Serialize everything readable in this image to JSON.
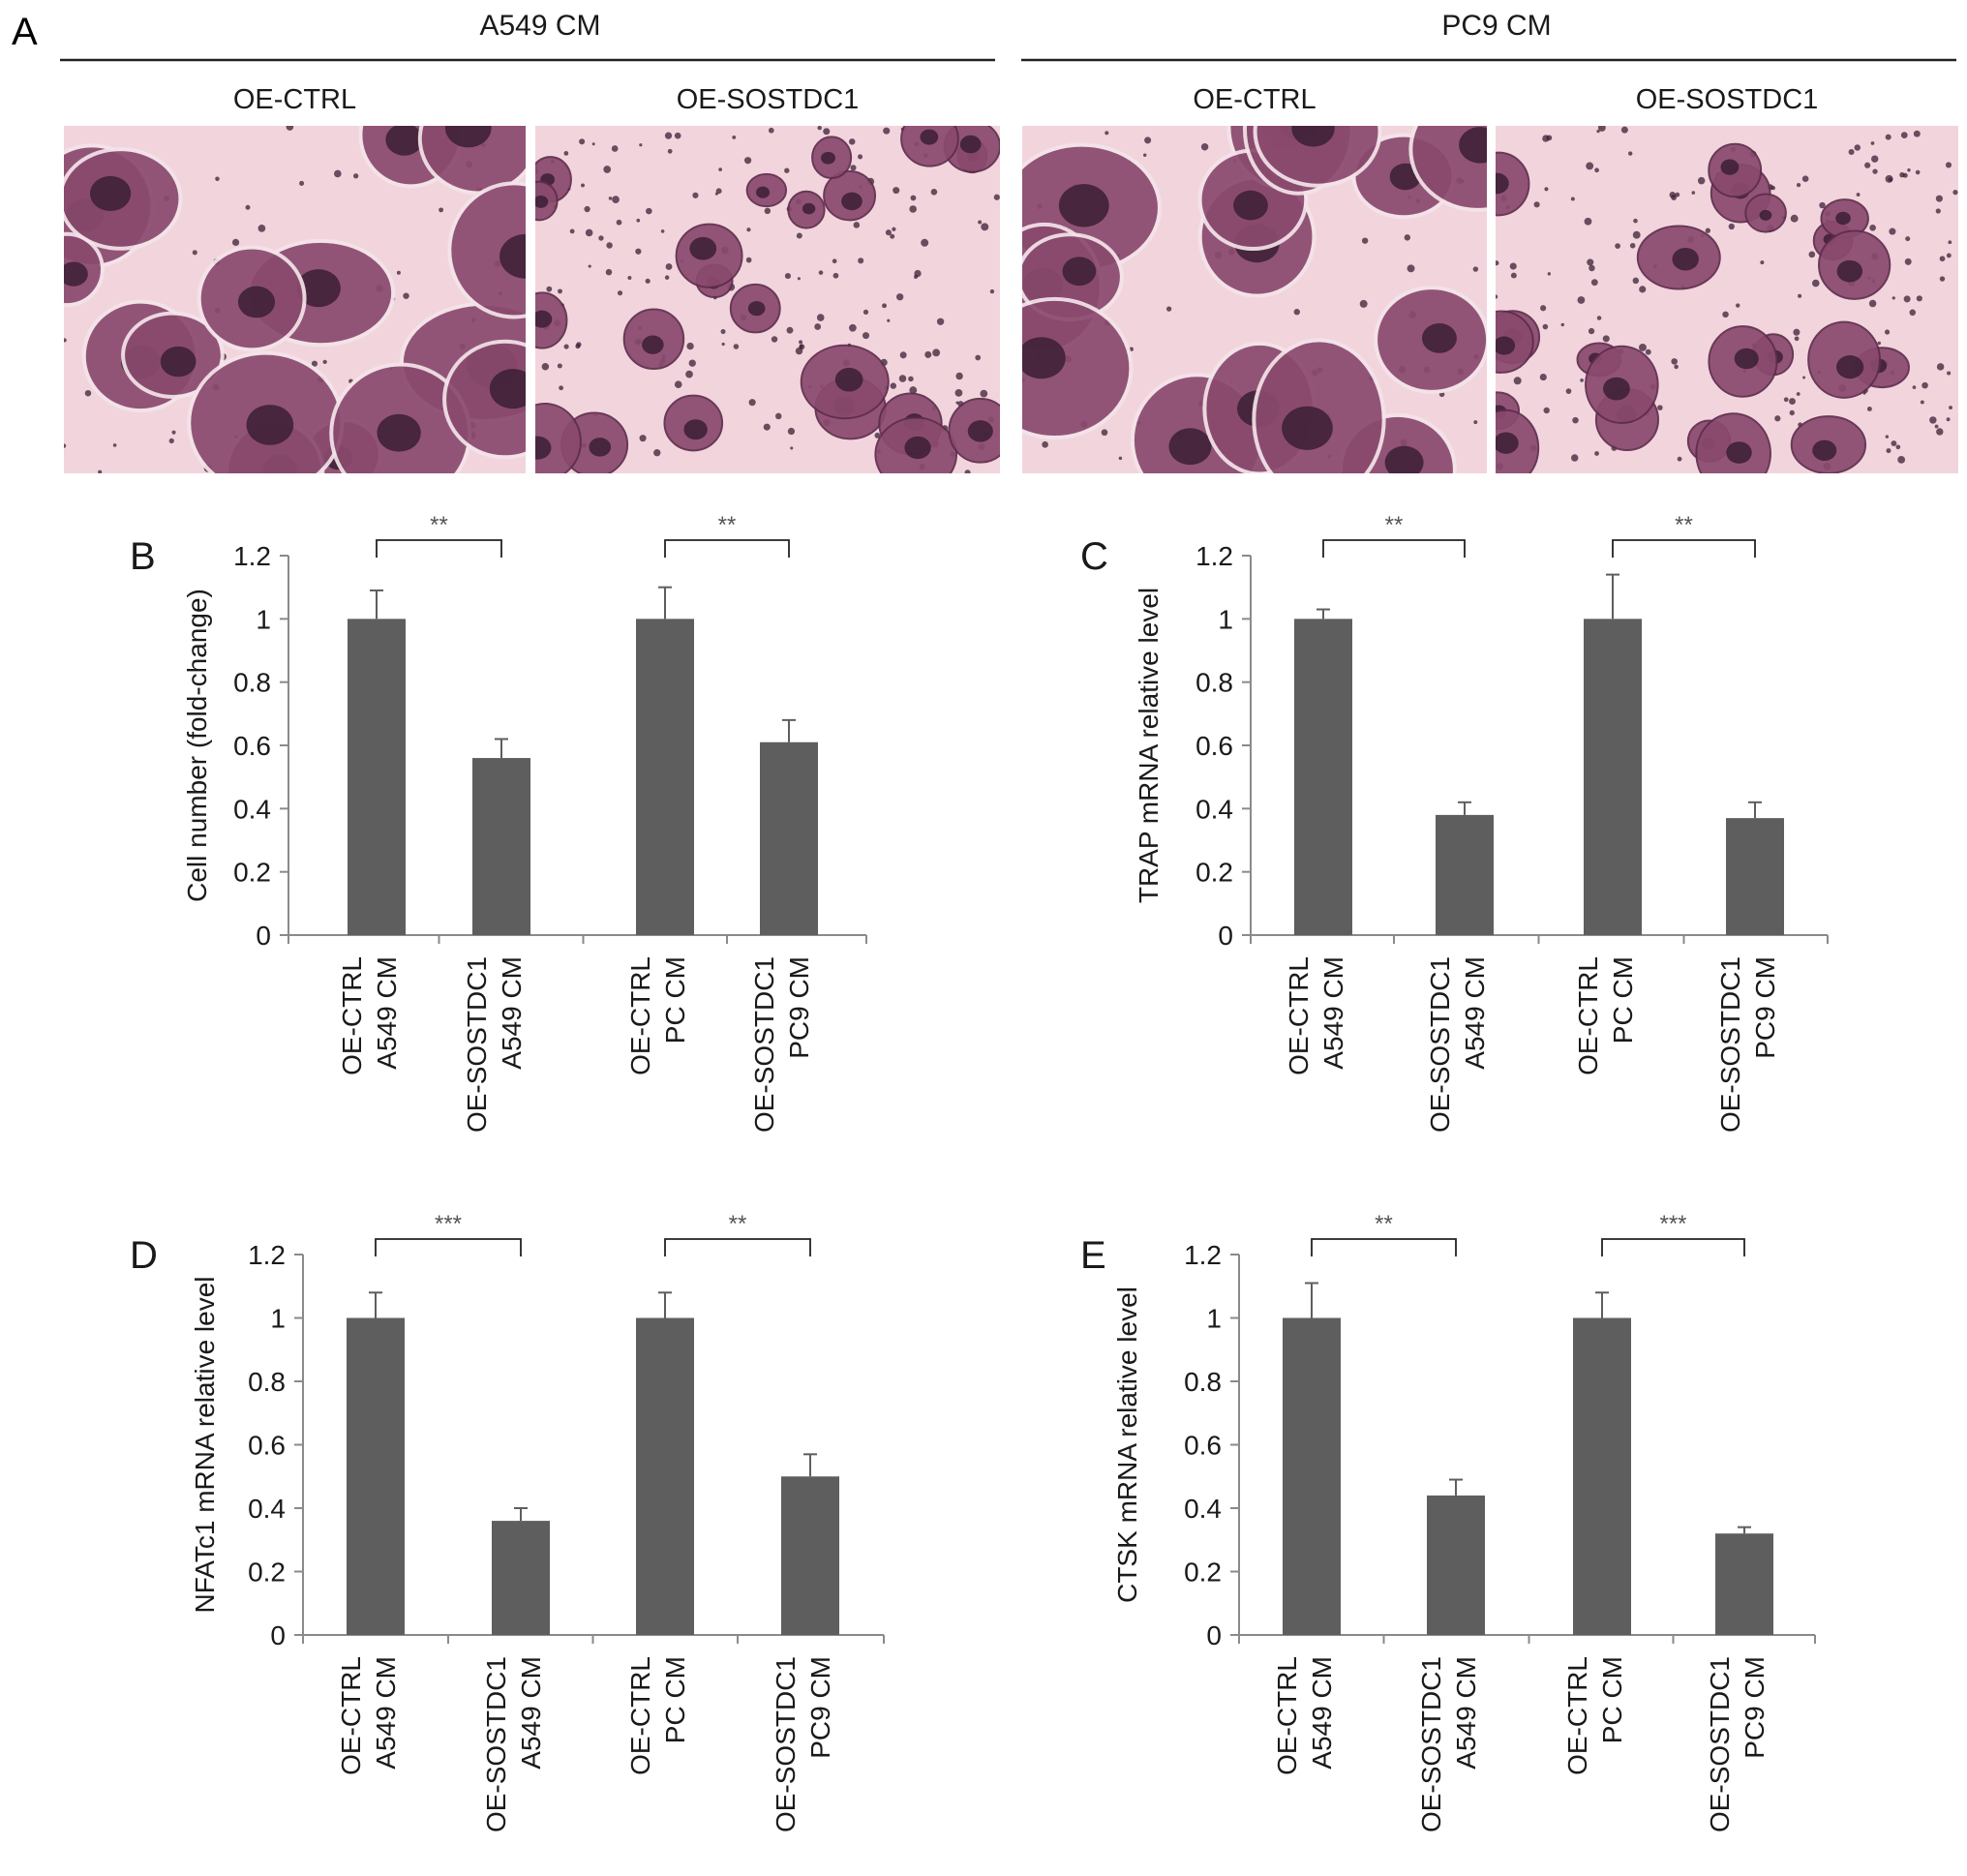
{
  "panel_a": {
    "letter": "A",
    "groups": [
      {
        "header": "A549 CM",
        "panels": [
          "OE-CTRL",
          "OE-SOSTDC1"
        ]
      },
      {
        "header": "PC9 CM",
        "panels": [
          "OE-CTRL",
          "OE-SOSTDC1"
        ]
      }
    ],
    "colors": {
      "background": "#f2d5dc",
      "cell": "#8a4a6e",
      "nucleus": "#3a1f35",
      "edge": "#5e2c4c"
    }
  },
  "colors": {
    "bar": "#5e5e5e",
    "axis": "#8a8a8a",
    "text": "#1a1a1a",
    "photo_bg": "#f2d5dc"
  },
  "chart_data": [
    {
      "panel": "B",
      "type": "bar",
      "ylabel": "Cell number (fold-change)",
      "ylim": [
        0,
        1.2
      ],
      "yticks": [
        "0",
        "0.2",
        "0.4",
        "0.6",
        "0.8",
        "1",
        "1.2"
      ],
      "categories": [
        [
          "OE-CTRL",
          "A549 CM"
        ],
        [
          "OE-SOSTDC1",
          "A549 CM"
        ],
        [
          "OE-CTRL",
          "PC CM"
        ],
        [
          "OE-SOSTDC1",
          "PC9 CM"
        ]
      ],
      "values": [
        1.0,
        0.56,
        1.0,
        0.61
      ],
      "errors": [
        0.09,
        0.06,
        0.1,
        0.07
      ],
      "significance": [
        {
          "pair": [
            0,
            1
          ],
          "label": "**"
        },
        {
          "pair": [
            2,
            3
          ],
          "label": "**"
        }
      ]
    },
    {
      "panel": "C",
      "type": "bar",
      "ylabel": "TRAP mRNA relative level",
      "ylim": [
        0,
        1.2
      ],
      "yticks": [
        "0",
        "0.2",
        "0.4",
        "0.6",
        "0.8",
        "1",
        "1.2"
      ],
      "categories": [
        [
          "OE-CTRL",
          "A549 CM"
        ],
        [
          "OE-SOSTDC1",
          "A549 CM"
        ],
        [
          "OE-CTRL",
          "PC CM"
        ],
        [
          "OE-SOSTDC1",
          "PC9 CM"
        ]
      ],
      "values": [
        1.0,
        0.38,
        1.0,
        0.37
      ],
      "errors": [
        0.03,
        0.04,
        0.14,
        0.05
      ],
      "significance": [
        {
          "pair": [
            0,
            1
          ],
          "label": "**"
        },
        {
          "pair": [
            2,
            3
          ],
          "label": "**"
        }
      ]
    },
    {
      "panel": "D",
      "type": "bar",
      "ylabel": "NFATc1 mRNA relative level",
      "ylim": [
        0,
        1.2
      ],
      "yticks": [
        "0",
        "0.2",
        "0.4",
        "0.6",
        "0.8",
        "1",
        "1.2"
      ],
      "categories": [
        [
          "OE-CTRL",
          "A549 CM"
        ],
        [
          "OE-SOSTDC1",
          "A549 CM"
        ],
        [
          "OE-CTRL",
          "PC CM"
        ],
        [
          "OE-SOSTDC1",
          "PC9 CM"
        ]
      ],
      "values": [
        1.0,
        0.36,
        1.0,
        0.5
      ],
      "errors": [
        0.08,
        0.04,
        0.08,
        0.07
      ],
      "significance": [
        {
          "pair": [
            0,
            1
          ],
          "label": "***"
        },
        {
          "pair": [
            2,
            3
          ],
          "label": "**"
        }
      ]
    },
    {
      "panel": "E",
      "type": "bar",
      "ylabel": "CTSK mRNA relative level",
      "ylim": [
        0,
        1.2
      ],
      "yticks": [
        "0",
        "0.2",
        "0.4",
        "0.6",
        "0.8",
        "1",
        "1.2"
      ],
      "categories": [
        [
          "OE-CTRL",
          "A549 CM"
        ],
        [
          "OE-SOSTDC1",
          "A549 CM"
        ],
        [
          "OE-CTRL",
          "PC CM"
        ],
        [
          "OE-SOSTDC1",
          "PC9 CM"
        ]
      ],
      "values": [
        1.0,
        0.44,
        1.0,
        0.32
      ],
      "errors": [
        0.11,
        0.05,
        0.08,
        0.02
      ],
      "significance": [
        {
          "pair": [
            0,
            1
          ],
          "label": "**"
        },
        {
          "pair": [
            2,
            3
          ],
          "label": "***"
        }
      ]
    }
  ]
}
